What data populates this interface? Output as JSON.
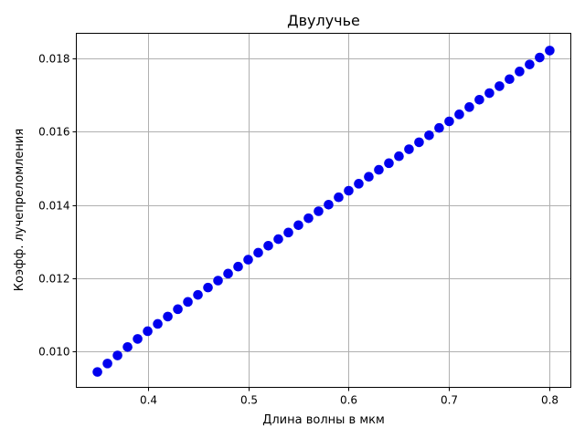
{
  "chart_data": {
    "type": "scatter",
    "title": "Двулучье",
    "xlabel": "Длина волны в мкм",
    "ylabel": "Коэфф. лучепреломления",
    "xlim": [
      0.329,
      0.821
    ],
    "ylim": [
      0.00903,
      0.01868
    ],
    "xticks": [
      0.4,
      0.5,
      0.6,
      0.7,
      0.8
    ],
    "xtick_labels": [
      "0.4",
      "0.5",
      "0.6",
      "0.7",
      "0.8"
    ],
    "yticks": [
      0.01,
      0.012,
      0.014,
      0.016,
      0.018
    ],
    "ytick_labels": [
      "0.010",
      "0.012",
      "0.014",
      "0.016",
      "0.018"
    ],
    "grid": true,
    "marker_color": "#0000ee",
    "series": [
      {
        "x": [
          0.35,
          0.36,
          0.37,
          0.38,
          0.39,
          0.4,
          0.41,
          0.42,
          0.43,
          0.44,
          0.45,
          0.46,
          0.47,
          0.48,
          0.49,
          0.5,
          0.51,
          0.52,
          0.53,
          0.54,
          0.55,
          0.56,
          0.57,
          0.58,
          0.59,
          0.6,
          0.61,
          0.62,
          0.63,
          0.64,
          0.65,
          0.66,
          0.67,
          0.68,
          0.69,
          0.7,
          0.71,
          0.72,
          0.73,
          0.74,
          0.75,
          0.76,
          0.77,
          0.78,
          0.79,
          0.8
        ],
        "y": [
          0.00945,
          0.00968,
          0.0099,
          0.01013,
          0.01035,
          0.01056,
          0.01076,
          0.01096,
          0.01116,
          0.01136,
          0.01155,
          0.01175,
          0.01194,
          0.01213,
          0.01232,
          0.01251,
          0.0127,
          0.01289,
          0.01307,
          0.01325,
          0.01345,
          0.01364,
          0.01383,
          0.01401,
          0.01421,
          0.01439,
          0.01458,
          0.01477,
          0.01496,
          0.01514,
          0.01533,
          0.01552,
          0.01571,
          0.0159,
          0.0161,
          0.01628,
          0.01647,
          0.01667,
          0.01687,
          0.01705,
          0.01724,
          0.01743,
          0.01764,
          0.01783,
          0.01802,
          0.01821
        ]
      }
    ]
  }
}
